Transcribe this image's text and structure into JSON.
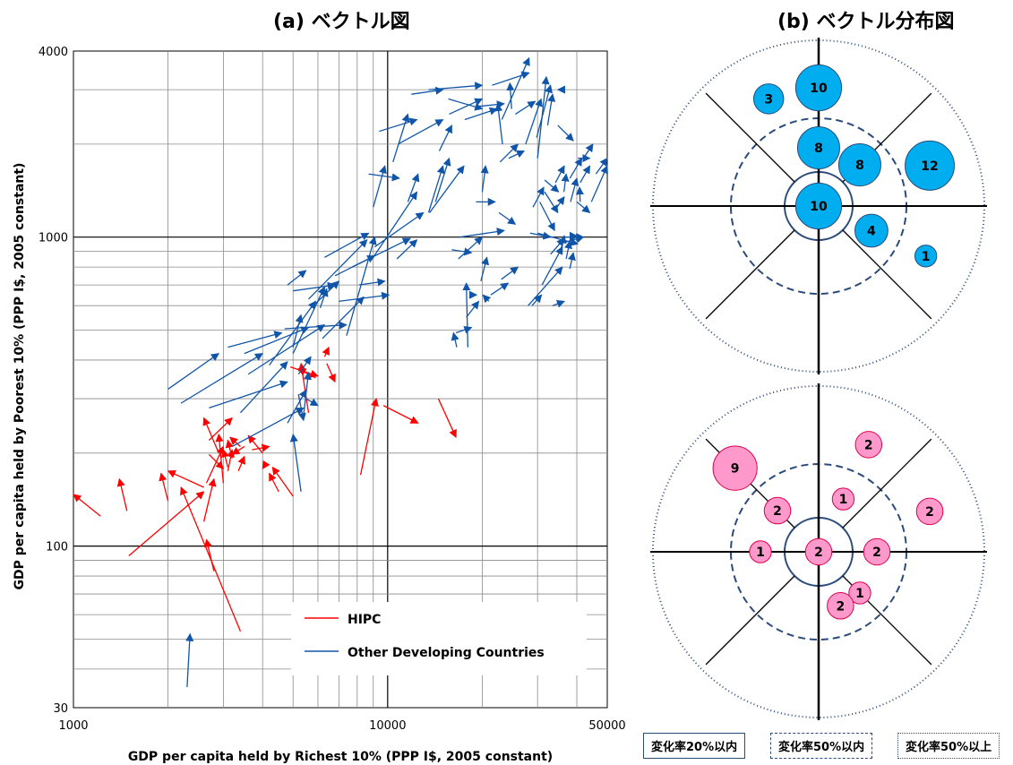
{
  "titles": {
    "left": "(a) ベクトル図",
    "right": "(b) ベクトル分布図"
  },
  "chart_data": [
    {
      "type": "scatter",
      "subtype": "vector",
      "title": "(a) ベクトル図",
      "xlabel": "GDP per capita held by Richest 10% (PPP I$, 2005 constant)",
      "ylabel": "GDP per capita held by Poorest 10% (PPP I$, 2005 constant)",
      "xscale": "log",
      "yscale": "log",
      "xlim": [
        1000,
        50000
      ],
      "ylim": [
        30,
        4000
      ],
      "xticks": [
        1000,
        10000,
        50000
      ],
      "xtick_labels": [
        "1000",
        "10000",
        "50000"
      ],
      "yticks": [
        30,
        100,
        1000,
        4000
      ],
      "ytick_labels": [
        "30",
        "100",
        "1000",
        "4000"
      ],
      "grid": true,
      "legend": {
        "position": "bottom-right",
        "entries": [
          "HIPC",
          "Other Developing Countries"
        ]
      },
      "series": [
        {
          "name": "HIPC",
          "color": "#ff0000",
          "vectors": [
            [
              1220,
              125,
              1000,
              147
            ],
            [
              1480,
              130,
              1400,
              165
            ],
            [
              1500,
              93,
              2600,
              150
            ],
            [
              2000,
              140,
              1900,
              172
            ],
            [
              2600,
              155,
              2000,
              175
            ],
            [
              2600,
              120,
              2800,
              165
            ],
            [
              2800,
              83,
              2650,
              105
            ],
            [
              3400,
              53,
              2200,
              155
            ],
            [
              2700,
              198,
              3000,
              178
            ],
            [
              2650,
              160,
              3000,
              210
            ],
            [
              3000,
              160,
              2900,
              230
            ],
            [
              3100,
              175,
              3200,
              205
            ],
            [
              3200,
              192,
              3100,
              220
            ],
            [
              3350,
              175,
              3500,
              195
            ],
            [
              3100,
              180,
              3000,
              205
            ],
            [
              3400,
              210,
              3150,
              225
            ],
            [
              3700,
              205,
              4200,
              210
            ],
            [
              3500,
              210,
              3200,
              198
            ],
            [
              4000,
              200,
              3600,
              228
            ],
            [
              4100,
              185,
              4000,
              178
            ],
            [
              4500,
              150,
              4200,
              172
            ],
            [
              5000,
              145,
              4300,
              180
            ],
            [
              4900,
              380,
              6000,
              355
            ],
            [
              5600,
              270,
              5300,
              390
            ],
            [
              6400,
              390,
              6800,
              340
            ],
            [
              6300,
              410,
              6500,
              440
            ],
            [
              5900,
              350,
              5200,
              375
            ],
            [
              8200,
              170,
              9200,
              300
            ],
            [
              9700,
              285,
              12500,
              250
            ],
            [
              14500,
              300,
              16500,
              225
            ],
            [
              2700,
              220,
              3200,
              260
            ],
            [
              2900,
              200,
              2600,
              260
            ]
          ]
        },
        {
          "name": "Other Developing Countries",
          "color": "#1155a8",
          "vectors": [
            [
              2300,
              35,
              2350,
              52
            ],
            [
              2000,
              322,
              2900,
              420
            ],
            [
              2200,
              290,
              4000,
              420
            ],
            [
              2700,
              280,
              4800,
              340
            ],
            [
              3100,
              440,
              4600,
              490
            ],
            [
              3500,
              420,
              5600,
              510
            ],
            [
              3400,
              270,
              4800,
              395
            ],
            [
              3200,
              210,
              5400,
              280
            ],
            [
              3600,
              360,
              6300,
              520
            ],
            [
              4200,
              385,
              5900,
              620
            ],
            [
              4700,
              505,
              7400,
              520
            ],
            [
              4800,
              700,
              5500,
              780
            ],
            [
              5000,
              420,
              6300,
              690
            ],
            [
              5200,
              360,
              5700,
              410
            ],
            [
              5200,
              310,
              5400,
              255
            ],
            [
              5400,
              265,
              5600,
              365
            ],
            [
              5000,
              440,
              5300,
              560
            ],
            [
              5000,
              670,
              6800,
              700
            ],
            [
              5700,
              590,
              7000,
              720
            ],
            [
              6100,
              590,
              6400,
              680
            ],
            [
              6300,
              860,
              8700,
              1030
            ],
            [
              5600,
              630,
              8600,
              980
            ],
            [
              6200,
              470,
              8400,
              640
            ],
            [
              6800,
              750,
              9100,
              870
            ],
            [
              5300,
              150,
              5000,
              230
            ],
            [
              4800,
              250,
              5500,
              320
            ],
            [
              5500,
              300,
              6000,
              285
            ],
            [
              7000,
              620,
              10100,
              650
            ],
            [
              7400,
              480,
              9100,
              1000
            ],
            [
              7700,
              800,
              11800,
              990
            ],
            [
              8100,
              700,
              9800,
              720
            ],
            [
              9000,
              860,
              12400,
              1400
            ],
            [
              8700,
              1600,
              10900,
              1550
            ],
            [
              9000,
              1250,
              9800,
              1700
            ],
            [
              9100,
              930,
              13000,
              1200
            ],
            [
              10400,
              1750,
              11600,
              2500
            ],
            [
              10700,
              850,
              12400,
              980
            ],
            [
              11600,
              1300,
              12500,
              1600
            ],
            [
              13500,
              1200,
              15000,
              1700
            ],
            [
              13600,
              1200,
              17500,
              1700
            ],
            [
              14200,
              1300,
              15700,
              1800
            ],
            [
              14600,
              1900,
              16000,
              2300
            ],
            [
              15700,
              2500,
              20000,
              2800
            ],
            [
              17600,
              2400,
              22300,
              2600
            ],
            [
              9400,
              2200,
              12400,
              2400
            ],
            [
              10800,
              2000,
              15000,
              2400
            ],
            [
              11900,
              2900,
              15000,
              3000
            ],
            [
              13500,
              3000,
              20000,
              3100
            ],
            [
              15600,
              2800,
              20000,
              2600
            ],
            [
              20000,
              1400,
              20500,
              1700
            ],
            [
              17800,
              550,
              19500,
              620
            ],
            [
              19800,
              720,
              20700,
              860
            ],
            [
              16800,
              850,
              20000,
              1000
            ],
            [
              17000,
              1000,
              23500,
              1050
            ],
            [
              19100,
              1300,
              22000,
              1300
            ],
            [
              16500,
              490,
              18500,
              510
            ],
            [
              18200,
              650,
              19200,
              650
            ],
            [
              18000,
              440,
              17800,
              710
            ],
            [
              16600,
              440,
              16200,
              490
            ],
            [
              16000,
              910,
              18500,
              890
            ],
            [
              22600,
              1200,
              25500,
              1100
            ],
            [
              21300,
              650,
              24200,
              710
            ],
            [
              23000,
              730,
              26000,
              800
            ],
            [
              21000,
              620,
              20100,
              650
            ],
            [
              23200,
              2000,
              22400,
              2700
            ],
            [
              19500,
              2650,
              23500,
              2700
            ],
            [
              22800,
              1750,
              26000,
              2000
            ],
            [
              23100,
              2400,
              28200,
              3800
            ],
            [
              21500,
              3100,
              28200,
              3400
            ],
            [
              24800,
              2600,
              24500,
              3150
            ],
            [
              24300,
              1800,
              27200,
              1900
            ],
            [
              25500,
              2500,
              29500,
              2750
            ],
            [
              27500,
              2000,
              30800,
              2800
            ],
            [
              29800,
              2100,
              33000,
              3100
            ],
            [
              30000,
              1800,
              32000,
              3300
            ],
            [
              32300,
              2300,
              33500,
              2900
            ],
            [
              28800,
              600,
              30900,
              650
            ],
            [
              29000,
              1250,
              31400,
              1450
            ],
            [
              30500,
              1300,
              34000,
              1050
            ],
            [
              31600,
              1400,
              34800,
              1200
            ],
            [
              31600,
              1530,
              35000,
              1400
            ],
            [
              34600,
              1250,
              36500,
              1350
            ],
            [
              34800,
              2300,
              39000,
              2050
            ],
            [
              35000,
              3000,
              34800,
              3000
            ],
            [
              34200,
              1500,
              36500,
              1700
            ],
            [
              36400,
              1400,
              37000,
              1600
            ],
            [
              38200,
              1300,
              40000,
              1550
            ],
            [
              38000,
              1550,
              41500,
              1800
            ],
            [
              41000,
              1500,
              44000,
              1700
            ],
            [
              42000,
              1800,
              45000,
              2000
            ],
            [
              40300,
              1800,
              44000,
              1800
            ],
            [
              40000,
              1000,
              42000,
              1000
            ],
            [
              28000,
              600,
              36000,
              800
            ],
            [
              31000,
              700,
              36000,
              930
            ],
            [
              33000,
              880,
              36500,
              990
            ],
            [
              35500,
              900,
              36500,
              1010
            ],
            [
              35000,
              950,
              42000,
              1000
            ],
            [
              37000,
              850,
              38000,
              970
            ],
            [
              38000,
              790,
              39000,
              890
            ],
            [
              40000,
              1300,
              44000,
              1200
            ],
            [
              41000,
              1300,
              40800,
              1450
            ],
            [
              44500,
              1300,
              50000,
              1700
            ],
            [
              46000,
              1600,
              50000,
              1800
            ],
            [
              28400,
              1030,
              33000,
              1000
            ],
            [
              30000,
              1030,
              40300,
              950
            ],
            [
              33500,
              600,
              36500,
              620
            ],
            [
              36800,
              1000,
              40000,
              1000
            ],
            [
              38000,
              1010,
              40000,
              1010
            ]
          ]
        }
      ]
    },
    {
      "type": "scatter",
      "subtype": "bubble",
      "title": "(b) ベクトル分布図",
      "series": [
        {
          "name": "Other Developing Countries",
          "color": "#00aeef",
          "points": [
            {
              "ring": "outer",
              "dir": "NNW",
              "count": 3
            },
            {
              "ring": "outer",
              "dir": "N",
              "count": 10
            },
            {
              "ring": "middle",
              "dir": "N",
              "count": 8
            },
            {
              "ring": "outer",
              "dir": "ENE",
              "count": 12
            },
            {
              "ring": "middle",
              "dir": "NE",
              "count": 8
            },
            {
              "ring": "center",
              "dir": "center",
              "count": 10
            },
            {
              "ring": "middle",
              "dir": "ESE",
              "count": 4
            },
            {
              "ring": "outer",
              "dir": "ESE",
              "count": 1
            }
          ]
        },
        {
          "name": "HIPC",
          "color": "#ff99cc",
          "points": [
            {
              "ring": "outer",
              "dir": "NW",
              "count": 9
            },
            {
              "ring": "outer",
              "dir": "NNE",
              "count": 2
            },
            {
              "ring": "middle",
              "dir": "NW",
              "count": 2
            },
            {
              "ring": "middle",
              "dir": "NNE",
              "count": 1
            },
            {
              "ring": "outer",
              "dir": "ENE",
              "count": 2
            },
            {
              "ring": "middle",
              "dir": "W",
              "count": 1
            },
            {
              "ring": "middle",
              "dir": "E",
              "count": 2
            },
            {
              "ring": "center",
              "dir": "center",
              "count": 2
            },
            {
              "ring": "middle",
              "dir": "SE",
              "count": 1
            },
            {
              "ring": "middle",
              "dir": "SSE",
              "count": 2
            }
          ]
        }
      ],
      "legend": {
        "position": "bottom",
        "entries": [
          "変化率20%以内",
          "変化率50%以内",
          "変化率50%以上"
        ]
      }
    }
  ]
}
